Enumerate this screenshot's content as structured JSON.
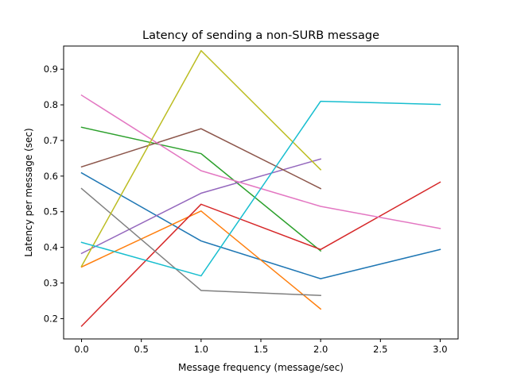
{
  "chart_data": {
    "type": "line",
    "title": "Latency of sending a non-SURB message",
    "xlabel": "Message frequency (message/sec)",
    "ylabel": "Latency per message (sec)",
    "xlim": [
      -0.15,
      3.15
    ],
    "ylim": [
      0.143,
      0.965
    ],
    "xticks": [
      0.0,
      0.5,
      1.0,
      1.5,
      2.0,
      2.5,
      3.0
    ],
    "xtick_labels": [
      "0.0",
      "0.5",
      "1.0",
      "1.5",
      "2.0",
      "2.5",
      "3.0"
    ],
    "yticks": [
      0.2,
      0.3,
      0.4,
      0.5,
      0.6,
      0.7,
      0.8,
      0.9
    ],
    "ytick_labels": [
      "0.2",
      "0.3",
      "0.4",
      "0.5",
      "0.6",
      "0.7",
      "0.8",
      "0.9"
    ],
    "grid": false,
    "legend": "none",
    "series": [
      {
        "color": "#1f77b4",
        "x": [
          0,
          1,
          2,
          3
        ],
        "y": [
          0.609,
          0.418,
          0.312,
          0.394
        ]
      },
      {
        "color": "#ff7f0e",
        "x": [
          0,
          1,
          2
        ],
        "y": [
          0.345,
          0.502,
          0.227
        ]
      },
      {
        "color": "#2ca02c",
        "x": [
          0,
          1,
          2
        ],
        "y": [
          0.737,
          0.663,
          0.39
        ]
      },
      {
        "color": "#d62728",
        "x": [
          0,
          1,
          2,
          3
        ],
        "y": [
          0.179,
          0.521,
          0.394,
          0.583
        ]
      },
      {
        "color": "#9467bd",
        "x": [
          0,
          1,
          2
        ],
        "y": [
          0.383,
          0.552,
          0.648
        ]
      },
      {
        "color": "#8c564b",
        "x": [
          0,
          1,
          2
        ],
        "y": [
          0.626,
          0.733,
          0.565
        ]
      },
      {
        "color": "#e377c2",
        "x": [
          0,
          1,
          2,
          3
        ],
        "y": [
          0.827,
          0.615,
          0.515,
          0.453
        ]
      },
      {
        "color": "#7f7f7f",
        "x": [
          0,
          1,
          2
        ],
        "y": [
          0.565,
          0.279,
          0.265
        ]
      },
      {
        "color": "#bcbd22",
        "x": [
          0,
          1,
          2
        ],
        "y": [
          0.347,
          0.952,
          0.618
        ]
      },
      {
        "color": "#17becf",
        "x": [
          0,
          1,
          2,
          3
        ],
        "y": [
          0.414,
          0.32,
          0.81,
          0.801
        ]
      }
    ]
  }
}
